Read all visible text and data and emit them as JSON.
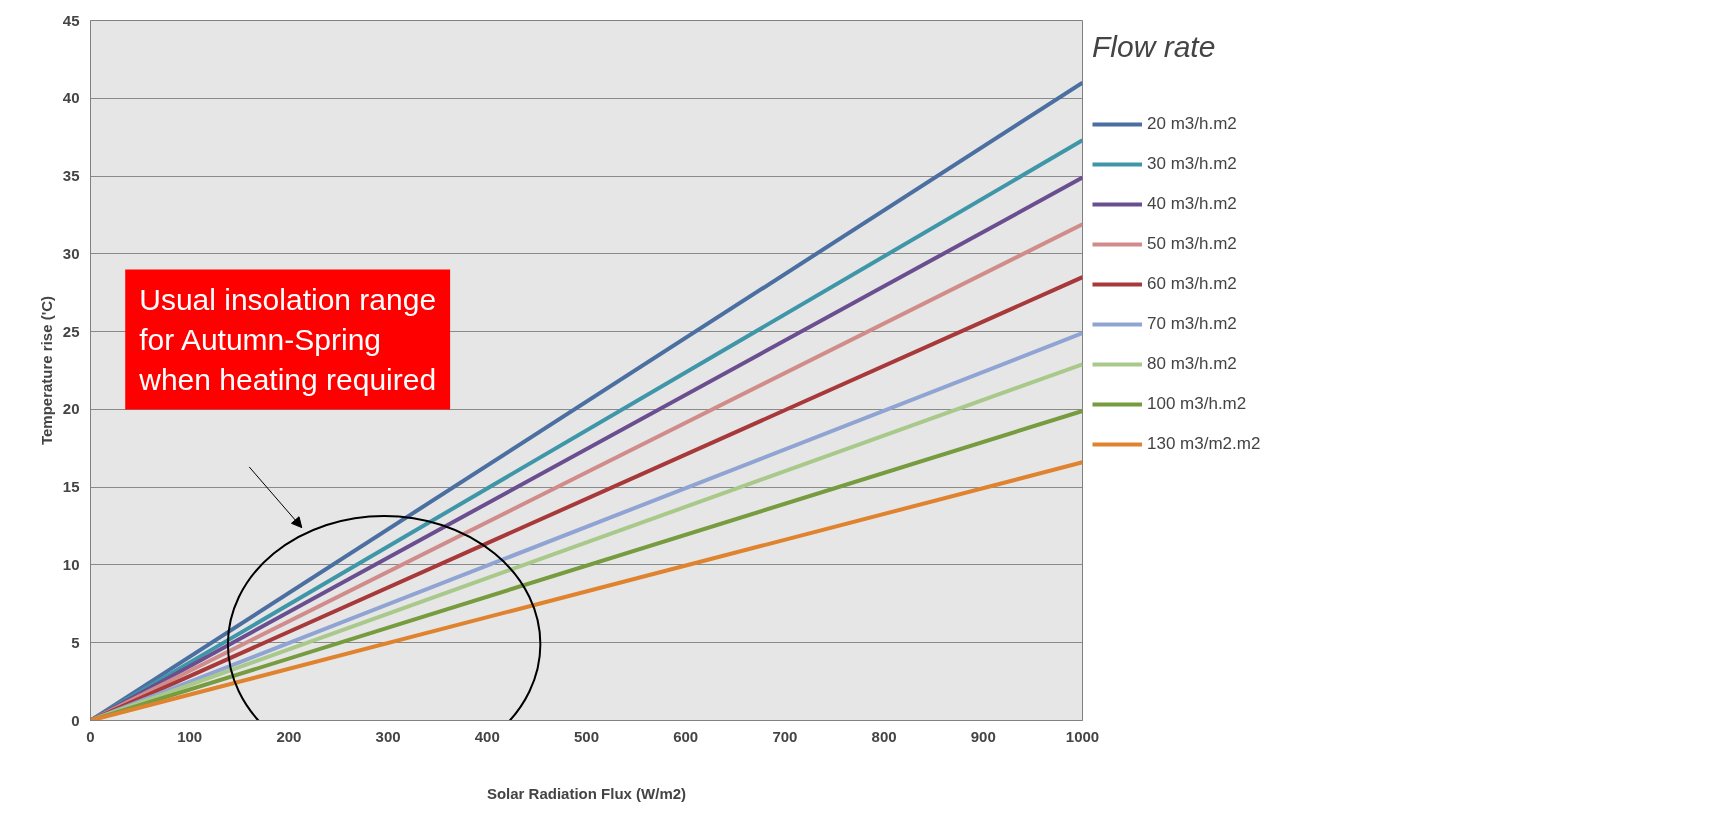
{
  "chart_data": {
    "type": "line",
    "xlabel": "Solar Radiation Flux (W/m2)",
    "ylabel": "Temperature rise ('C)",
    "legend_title": "Flow rate",
    "x": [
      0,
      1000
    ],
    "series": [
      {
        "name": "20 m3/h.m2",
        "color": "#4a6fa0",
        "values": [
          0,
          41.0
        ]
      },
      {
        "name": "30 m3/h.m2",
        "color": "#3f96a8",
        "values": [
          0,
          37.3
        ]
      },
      {
        "name": "40 m3/h.m2",
        "color": "#6a4e8f",
        "values": [
          0,
          34.9
        ]
      },
      {
        "name": "50 m3/h.m2",
        "color": "#d08c8a",
        "values": [
          0,
          31.9
        ]
      },
      {
        "name": "60 m3/h.m2",
        "color": "#a8393b",
        "values": [
          0,
          28.5
        ]
      },
      {
        "name": "70 m3/h.m2",
        "color": "#8fa4d2",
        "values": [
          0,
          24.9
        ]
      },
      {
        "name": "80 m3/h.m2",
        "color": "#a9c98a",
        "values": [
          0,
          22.9
        ]
      },
      {
        "name": "100 m3/h.m2",
        "color": "#779b3f",
        "values": [
          0,
          19.9
        ]
      },
      {
        "name": "130 m3/m2.m2",
        "color": "#e0832f",
        "values": [
          0,
          16.6
        ]
      }
    ],
    "xlim": [
      0,
      1000
    ],
    "ylim": [
      0,
      45
    ],
    "xticks": [
      0,
      100,
      200,
      300,
      400,
      500,
      600,
      700,
      800,
      900,
      1000
    ],
    "yticks": [
      0,
      5,
      10,
      15,
      20,
      25,
      30,
      35,
      40,
      45
    ],
    "grid": "y",
    "legend": "right",
    "marker": "none",
    "line_style": "solid",
    "annotations": [
      "Usual insolation range\nfor Autumn-Spring\nwhen heating required"
    ]
  }
}
